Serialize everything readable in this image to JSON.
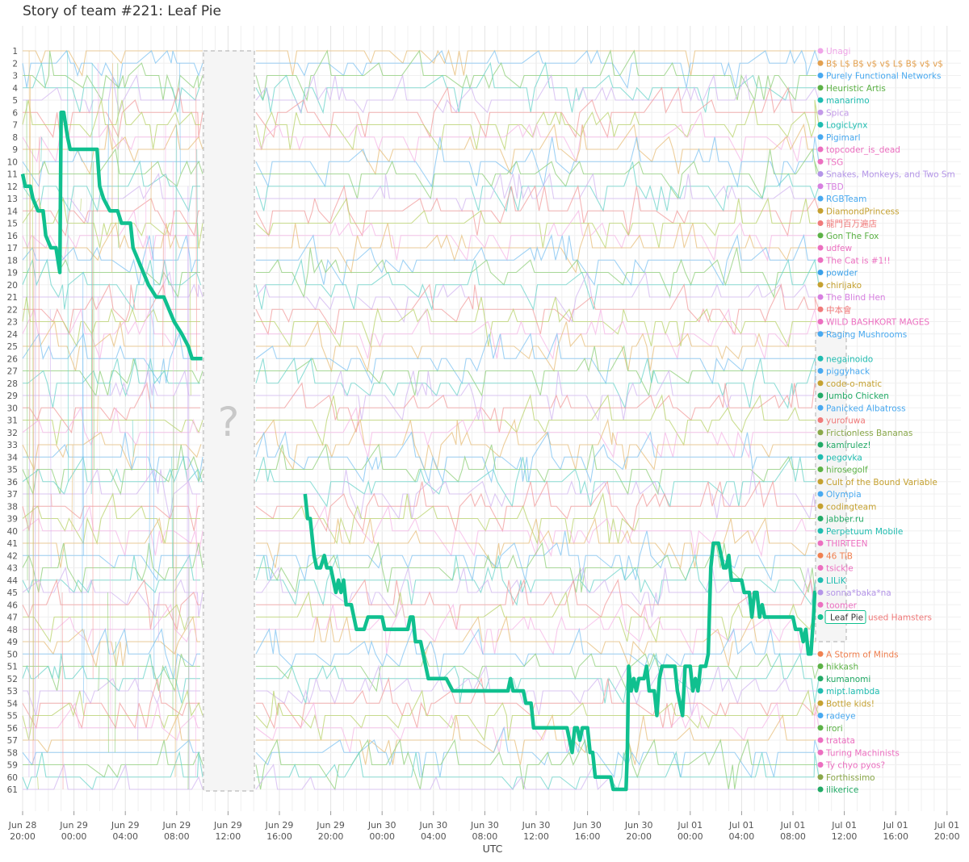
{
  "title": "Story of team #221: Leaf Pie",
  "chart_data": {
    "type": "line",
    "title": "Story of team #221: Leaf Pie",
    "xlabel": "UTC",
    "ylabel": "",
    "y_ranks": [
      1,
      2,
      3,
      4,
      5,
      6,
      7,
      8,
      9,
      10,
      11,
      12,
      13,
      14,
      15,
      16,
      17,
      18,
      19,
      20,
      21,
      22,
      23,
      24,
      25,
      26,
      27,
      28,
      29,
      30,
      31,
      32,
      33,
      34,
      35,
      36,
      37,
      38,
      39,
      40,
      41,
      42,
      43,
      44,
      45,
      46,
      47,
      48,
      49,
      50,
      51,
      52,
      53,
      54,
      55,
      56,
      57,
      58,
      59,
      60,
      61
    ],
    "x_ticks": [
      [
        "Jun 28",
        "20:00"
      ],
      [
        "Jun 29",
        "00:00"
      ],
      [
        "Jun 29",
        "04:00"
      ],
      [
        "Jun 29",
        "08:00"
      ],
      [
        "Jun 29",
        "12:00"
      ],
      [
        "Jun 29",
        "16:00"
      ],
      [
        "Jun 29",
        "20:00"
      ],
      [
        "Jun 30",
        "00:00"
      ],
      [
        "Jun 30",
        "04:00"
      ],
      [
        "Jun 30",
        "08:00"
      ],
      [
        "Jun 30",
        "12:00"
      ],
      [
        "Jun 30",
        "16:00"
      ],
      [
        "Jun 30",
        "20:00"
      ],
      [
        "Jul 01",
        "00:00"
      ],
      [
        "Jul 01",
        "04:00"
      ],
      [
        "Jul 01",
        "08:00"
      ],
      [
        "Jul 01",
        "12:00"
      ],
      [
        "Jul 01",
        "16:00"
      ],
      [
        "Jul 01",
        "20:00"
      ]
    ],
    "gap_label": "?",
    "highlight": {
      "name": "Leaf Pie",
      "color": "#10c08f",
      "points": [
        [
          0.0,
          11
        ],
        [
          0.1,
          12
        ],
        [
          0.3,
          12
        ],
        [
          0.4,
          13
        ],
        [
          0.6,
          14
        ],
        [
          0.8,
          14
        ],
        [
          0.9,
          16
        ],
        [
          1.1,
          17
        ],
        [
          1.3,
          17
        ],
        [
          1.45,
          19
        ],
        [
          1.5,
          6
        ],
        [
          1.6,
          6
        ],
        [
          1.75,
          8
        ],
        [
          1.85,
          9
        ],
        [
          2.2,
          9
        ],
        [
          2.6,
          9
        ],
        [
          2.9,
          9
        ],
        [
          3.0,
          12
        ],
        [
          3.15,
          13
        ],
        [
          3.4,
          14
        ],
        [
          3.7,
          14
        ],
        [
          3.85,
          15
        ],
        [
          4.2,
          15
        ],
        [
          4.3,
          17
        ],
        [
          4.5,
          18
        ],
        [
          4.7,
          19
        ],
        [
          4.9,
          20
        ],
        [
          5.2,
          21
        ],
        [
          5.5,
          21
        ],
        [
          5.7,
          22
        ],
        [
          5.9,
          23
        ],
        [
          6.2,
          24
        ],
        [
          6.45,
          25
        ],
        [
          6.6,
          26
        ],
        [
          7.0,
          26
        ],
        [
          11.0,
          37
        ],
        [
          11.1,
          39
        ],
        [
          11.2,
          39
        ],
        [
          11.35,
          42
        ],
        [
          11.45,
          43
        ],
        [
          11.6,
          43
        ],
        [
          11.75,
          42
        ],
        [
          11.85,
          43
        ],
        [
          12.0,
          43
        ],
        [
          12.1,
          44
        ],
        [
          12.2,
          45
        ],
        [
          12.3,
          44
        ],
        [
          12.4,
          45
        ],
        [
          12.5,
          44
        ],
        [
          12.6,
          46
        ],
        [
          12.8,
          46
        ],
        [
          12.9,
          47
        ],
        [
          13.0,
          48
        ],
        [
          13.3,
          48
        ],
        [
          13.45,
          47
        ],
        [
          14.0,
          47
        ],
        [
          14.1,
          48
        ],
        [
          14.8,
          48
        ],
        [
          15.0,
          48
        ],
        [
          15.1,
          47
        ],
        [
          15.2,
          47
        ],
        [
          15.3,
          49
        ],
        [
          15.5,
          49
        ],
        [
          15.6,
          50
        ],
        [
          15.8,
          52
        ],
        [
          16.5,
          52
        ],
        [
          16.75,
          53
        ],
        [
          17.5,
          53
        ],
        [
          18.5,
          53
        ],
        [
          18.9,
          53
        ],
        [
          19.0,
          52
        ],
        [
          19.1,
          53
        ],
        [
          19.5,
          53
        ],
        [
          19.6,
          54
        ],
        [
          19.8,
          54
        ],
        [
          19.9,
          56
        ],
        [
          20.2,
          56
        ],
        [
          21.0,
          56
        ],
        [
          21.2,
          56
        ],
        [
          21.3,
          57
        ],
        [
          21.4,
          58
        ],
        [
          21.5,
          56
        ],
        [
          21.6,
          56
        ],
        [
          21.7,
          57
        ],
        [
          21.8,
          56
        ],
        [
          22.0,
          56
        ],
        [
          22.1,
          58
        ],
        [
          22.2,
          58
        ],
        [
          22.3,
          60
        ],
        [
          22.9,
          60
        ],
        [
          23.0,
          61
        ],
        [
          23.5,
          61
        ],
        [
          23.55,
          58
        ],
        [
          23.6,
          51
        ],
        [
          23.7,
          53
        ],
        [
          23.8,
          52
        ],
        [
          23.9,
          53
        ],
        [
          24.0,
          52
        ],
        [
          24.2,
          52
        ],
        [
          24.3,
          51
        ],
        [
          24.4,
          53
        ],
        [
          24.6,
          53
        ],
        [
          24.7,
          55
        ],
        [
          24.8,
          52
        ],
        [
          24.9,
          51
        ],
        [
          25.1,
          51
        ],
        [
          25.2,
          51
        ],
        [
          25.4,
          51
        ],
        [
          25.5,
          53
        ],
        [
          25.6,
          54
        ],
        [
          25.7,
          55
        ],
        [
          25.8,
          51
        ],
        [
          26.0,
          51
        ],
        [
          26.1,
          53
        ],
        [
          26.2,
          52
        ],
        [
          26.3,
          53
        ],
        [
          26.4,
          51
        ],
        [
          26.5,
          51
        ],
        [
          26.6,
          51
        ],
        [
          26.7,
          50
        ],
        [
          26.8,
          43
        ],
        [
          26.9,
          41
        ],
        [
          27.1,
          41
        ],
        [
          27.2,
          42
        ],
        [
          27.3,
          43
        ],
        [
          27.4,
          43
        ],
        [
          27.5,
          42
        ],
        [
          27.6,
          44
        ],
        [
          28.0,
          44
        ],
        [
          28.1,
          45
        ],
        [
          28.3,
          45
        ],
        [
          28.4,
          47
        ],
        [
          28.5,
          45
        ],
        [
          28.6,
          45
        ],
        [
          28.7,
          47
        ],
        [
          28.8,
          46
        ],
        [
          28.9,
          47
        ],
        [
          29.2,
          47
        ],
        [
          30.0,
          47
        ],
        [
          30.1,
          48
        ],
        [
          30.3,
          48
        ],
        [
          30.4,
          49
        ],
        [
          30.5,
          48
        ],
        [
          30.6,
          50
        ],
        [
          30.7,
          50
        ],
        [
          30.8,
          47
        ],
        [
          30.85,
          45
        ],
        [
          30.9,
          45
        ]
      ]
    },
    "teams": [
      {
        "rank": 1,
        "name": "Unagi",
        "color": "#f0a5e8"
      },
      {
        "rank": 2,
        "name": "B$ L$ B$ v$ v$ L$ B$ v$ v$",
        "color": "#e3a04f"
      },
      {
        "rank": 3,
        "name": "Purely Functional Networks",
        "color": "#48a9f0"
      },
      {
        "rank": 4,
        "name": "Heuristic Artis",
        "color": "#5cb246"
      },
      {
        "rank": 5,
        "name": "manarimo",
        "color": "#1fbcb0"
      },
      {
        "rank": 6,
        "name": "Spica",
        "color": "#c39ae8"
      },
      {
        "rank": 7,
        "name": "LogicLynx",
        "color": "#1fbcb0"
      },
      {
        "rank": 8,
        "name": "Pigimarl",
        "color": "#48a9f0"
      },
      {
        "rank": 9,
        "name": "topcoder_is_dead",
        "color": "#ec6fc0"
      },
      {
        "rank": 10,
        "name": "TSG",
        "color": "#ec6fc0"
      },
      {
        "rank": 11,
        "name": "Snakes, Monkeys, and Two Sm",
        "color": "#b495e8"
      },
      {
        "rank": 12,
        "name": "TBD",
        "color": "#d77fe0"
      },
      {
        "rank": 13,
        "name": "RGBTeam",
        "color": "#48a9f0"
      },
      {
        "rank": 14,
        "name": "DiamondPrincess",
        "color": "#c5a130"
      },
      {
        "rank": 15,
        "name": "龍門百万遍店",
        "color": "#f07a7a"
      },
      {
        "rank": 16,
        "name": "Gon The Fox",
        "color": "#5cb246"
      },
      {
        "rank": 17,
        "name": "udfew",
        "color": "#ec6fc0"
      },
      {
        "rank": 18,
        "name": "The Cat is #1!!",
        "color": "#ec6fc0"
      },
      {
        "rank": 19,
        "name": "powder",
        "color": "#3aa0e8"
      },
      {
        "rank": 20,
        "name": "chirijako",
        "color": "#c5a130"
      },
      {
        "rank": 21,
        "name": "The Blind Hen",
        "color": "#d77fe0"
      },
      {
        "rank": 22,
        "name": "中本會",
        "color": "#f07a7a"
      },
      {
        "rank": 23,
        "name": "WILD BASHKORT MAGES",
        "color": "#ec6fc0"
      },
      {
        "rank": 24,
        "name": "Raging Mushrooms",
        "color": "#48a9f0"
      },
      {
        "rank": 26,
        "name": "negainoido",
        "color": "#1fbcb0"
      },
      {
        "rank": 27,
        "name": "piggyhack",
        "color": "#48a9f0"
      },
      {
        "rank": 28,
        "name": "code-o-matic",
        "color": "#c5a130"
      },
      {
        "rank": 29,
        "name": "Jumbo Chicken",
        "color": "#22aa66"
      },
      {
        "rank": 30,
        "name": "Panicked Albatross",
        "color": "#48a9f0"
      },
      {
        "rank": 31,
        "name": "yurofuwa",
        "color": "#f07a7a"
      },
      {
        "rank": 32,
        "name": "Frictionless Bananas",
        "color": "#8aa84a"
      },
      {
        "rank": 33,
        "name": "kamirulez!",
        "color": "#22aa66"
      },
      {
        "rank": 34,
        "name": "pegovka",
        "color": "#1fbcb0"
      },
      {
        "rank": 35,
        "name": "hirosegolf",
        "color": "#5cb246"
      },
      {
        "rank": 36,
        "name": "Cult of the Bound Variable",
        "color": "#c5a130"
      },
      {
        "rank": 37,
        "name": "Olympia",
        "color": "#48a9f0"
      },
      {
        "rank": 38,
        "name": "codingteam",
        "color": "#c5a130"
      },
      {
        "rank": 39,
        "name": "jabber.ru",
        "color": "#22aa66"
      },
      {
        "rank": 40,
        "name": "Perpetuum Mobile",
        "color": "#1fbcb0"
      },
      {
        "rank": 41,
        "name": "THIRTEEN",
        "color": "#ec6fc0"
      },
      {
        "rank": 42,
        "name": "46 TiB",
        "color": "#f08050"
      },
      {
        "rank": 43,
        "name": "tsickle",
        "color": "#ec6fc0"
      },
      {
        "rank": 44,
        "name": "LILiK",
        "color": "#1fbcb0"
      },
      {
        "rank": 45,
        "name": "sonna*baka*na",
        "color": "#b495e8"
      },
      {
        "rank": 46,
        "name": "toomer",
        "color": "#ec6fc0"
      },
      {
        "rank": 47,
        "name": "Leaf Pie",
        "color": "#10c08f"
      },
      {
        "rank": 47,
        "name": "used Hamsters",
        "color": "#f07a7a"
      },
      {
        "rank": 50,
        "name": "A Storm of Minds",
        "color": "#f08050"
      },
      {
        "rank": 51,
        "name": "hikkash",
        "color": "#5cb246"
      },
      {
        "rank": 52,
        "name": "kumanomi",
        "color": "#22aa66"
      },
      {
        "rank": 53,
        "name": "mipt.lambda",
        "color": "#1fbcb0"
      },
      {
        "rank": 54,
        "name": "Bottle kids!",
        "color": "#c5a130"
      },
      {
        "rank": 55,
        "name": "radeye",
        "color": "#48a9f0"
      },
      {
        "rank": 56,
        "name": "irori",
        "color": "#5cb246"
      },
      {
        "rank": 57,
        "name": "tratata",
        "color": "#ec6fc0"
      },
      {
        "rank": 58,
        "name": "Turing Machinists",
        "color": "#ec6fc0"
      },
      {
        "rank": 59,
        "name": "Ty chyo pyos?",
        "color": "#ec6fc0"
      },
      {
        "rank": 60,
        "name": "Forthissimo",
        "color": "#8aa84a"
      },
      {
        "rank": 61,
        "name": "ilikerice",
        "color": "#22aa66"
      }
    ],
    "background_palette": [
      "#f5b6e6",
      "#e7be7a",
      "#7fc3f2",
      "#8fcf7a",
      "#6ad3c9",
      "#d1b6f0",
      "#f29c9c",
      "#b9d36c"
    ]
  }
}
